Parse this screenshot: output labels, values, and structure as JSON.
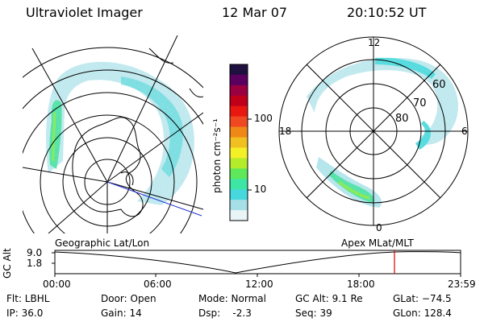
{
  "header": {
    "instrument": "Ultraviolet Imager",
    "date": "12 Mar 07",
    "time": "20:10:52 UT"
  },
  "colorbar": {
    "unit_label": "photon cm⁻²s⁻¹",
    "ticks": [
      "100",
      "10"
    ],
    "colors": [
      "#e8f4f6",
      "#a6dfe6",
      "#46d8dc",
      "#3de6a4",
      "#5ee85a",
      "#b4ec2c",
      "#f4f028",
      "#f0c020",
      "#f08818",
      "#f04820",
      "#e81810",
      "#c00018",
      "#9a0040",
      "#5c0060",
      "#201040"
    ]
  },
  "left_map": {
    "label": "Geographic Lat/Lon"
  },
  "right_map": {
    "label": "Apex MLat/MLT",
    "mlt_labels": {
      "top": "12",
      "left": "18",
      "right": "6",
      "bottom": "0"
    },
    "lat_labels": [
      "60",
      "70",
      "80"
    ]
  },
  "timeline": {
    "y_axis_label": "GC Alt",
    "y_ticks": [
      "9.0",
      "1.8"
    ],
    "x_ticks": [
      "00:00",
      "06:00",
      "12:00",
      "18:00",
      "23:59"
    ],
    "marker_color": "#e00000"
  },
  "footer": {
    "flt": "Flt: LBHL",
    "ip": "IP: 36.0",
    "door": "Door: Open",
    "gain": "Gain: 14",
    "mode": "Mode: Normal",
    "dsp": "Dsp:    -2.3",
    "gc_alt": "GC Alt: 9.1 Re",
    "seq": "Seq: 39",
    "glat": "GLat: −74.5",
    "glon": "GLon: 128.4"
  }
}
